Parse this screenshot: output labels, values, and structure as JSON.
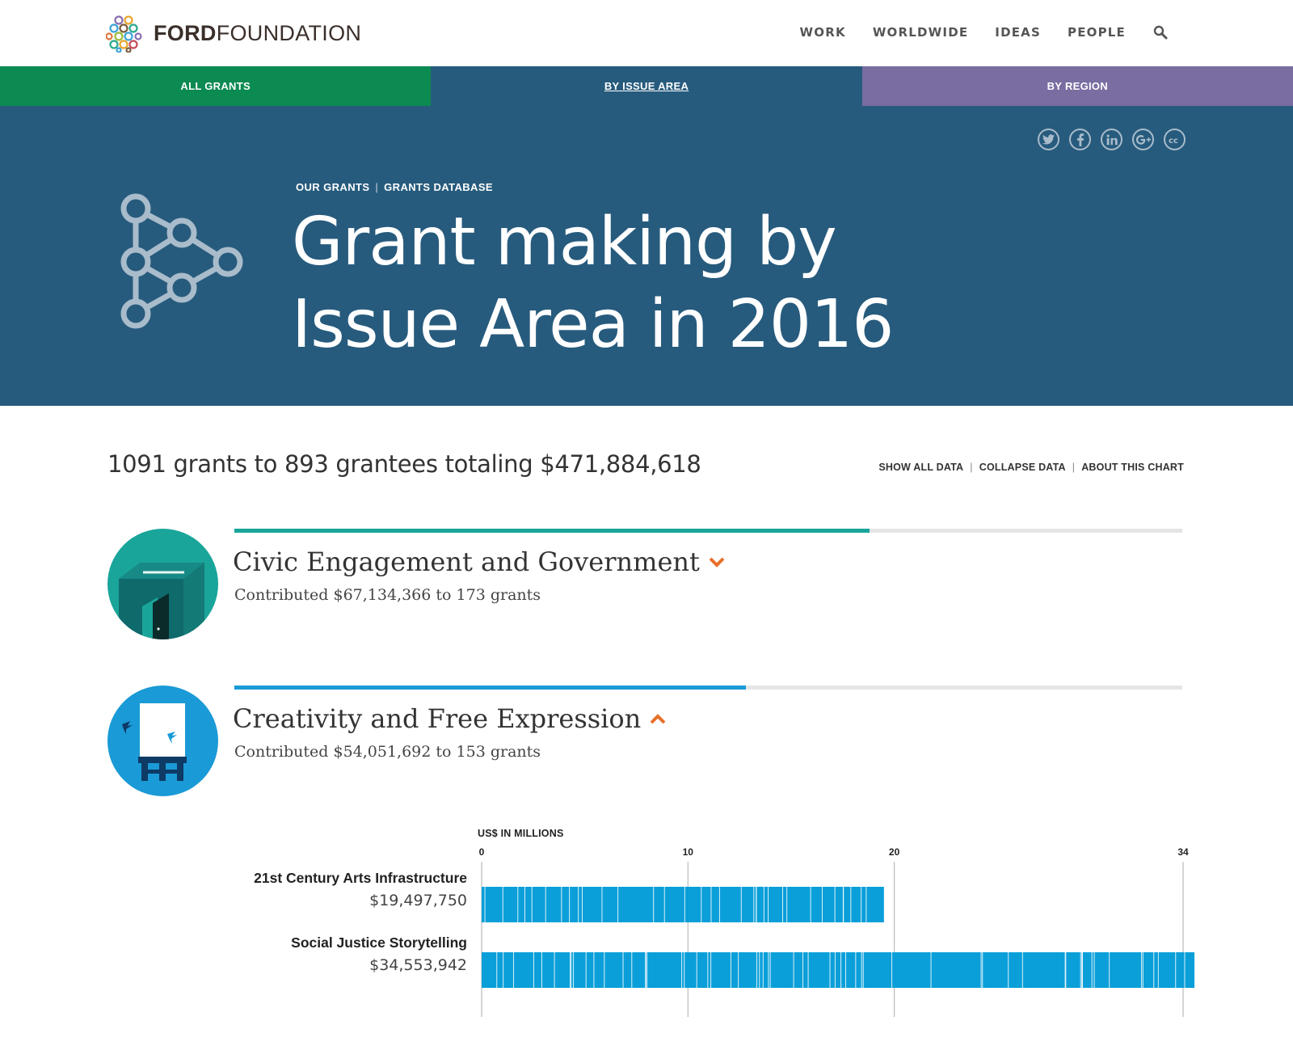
{
  "header": {
    "logo_bold": "FORD",
    "logo_thin": "FOUNDATION",
    "nav": [
      "WORK",
      "WORLDWIDE",
      "IDEAS",
      "PEOPLE"
    ],
    "search_icon": "search-icon"
  },
  "tabs": [
    "ALL GRANTS",
    "BY ISSUE AREA",
    "BY REGION"
  ],
  "colors": {
    "tab_green": "#0b8a51",
    "tab_blue": "#275b7d",
    "tab_purple": "#7a6da1",
    "civic": "#1aa59a",
    "creativity": "#1a9ad6",
    "caret": "#e8702a",
    "bar": "#0a9fd9"
  },
  "hero": {
    "social_icons": [
      "twitter-icon",
      "facebook-icon",
      "linkedin-icon",
      "google-plus-icon",
      "creative-commons-icon"
    ],
    "crumb_1": "OUR GRANTS",
    "crumb_sep": "|",
    "crumb_2": "GRANTS DATABASE",
    "title_line1": "Grant making by",
    "title_line2": "Issue Area in 2016"
  },
  "summary": {
    "text": "1091 grants to 893 grantees totaling $471,884,618",
    "links": [
      "SHOW ALL DATA",
      "COLLAPSE DATA",
      "ABOUT THIS CHART"
    ]
  },
  "issues": [
    {
      "title": "Civic Engagement and Government",
      "subtitle": "Contributed $67,134,366 to 173 grants",
      "share": 0.67,
      "expanded": false
    },
    {
      "title": "Creativity and Free Expression",
      "subtitle": "Contributed $54,051,692 to 153 grants",
      "share": 0.54,
      "expanded": true
    }
  ],
  "chart_data": {
    "type": "bar",
    "ylabel": "US$ IN MILLIONS",
    "xlim": [
      0,
      34
    ],
    "ticks": [
      0,
      10,
      20,
      34
    ],
    "tick_labels": [
      "0",
      "10",
      "20",
      "34"
    ],
    "categories": [
      "21st Century Arts Infrastructure",
      "Social Justice Storytelling"
    ],
    "value_labels": [
      "$19,497,750",
      "$34,553,942"
    ],
    "values": [
      19.5,
      34.55
    ]
  }
}
